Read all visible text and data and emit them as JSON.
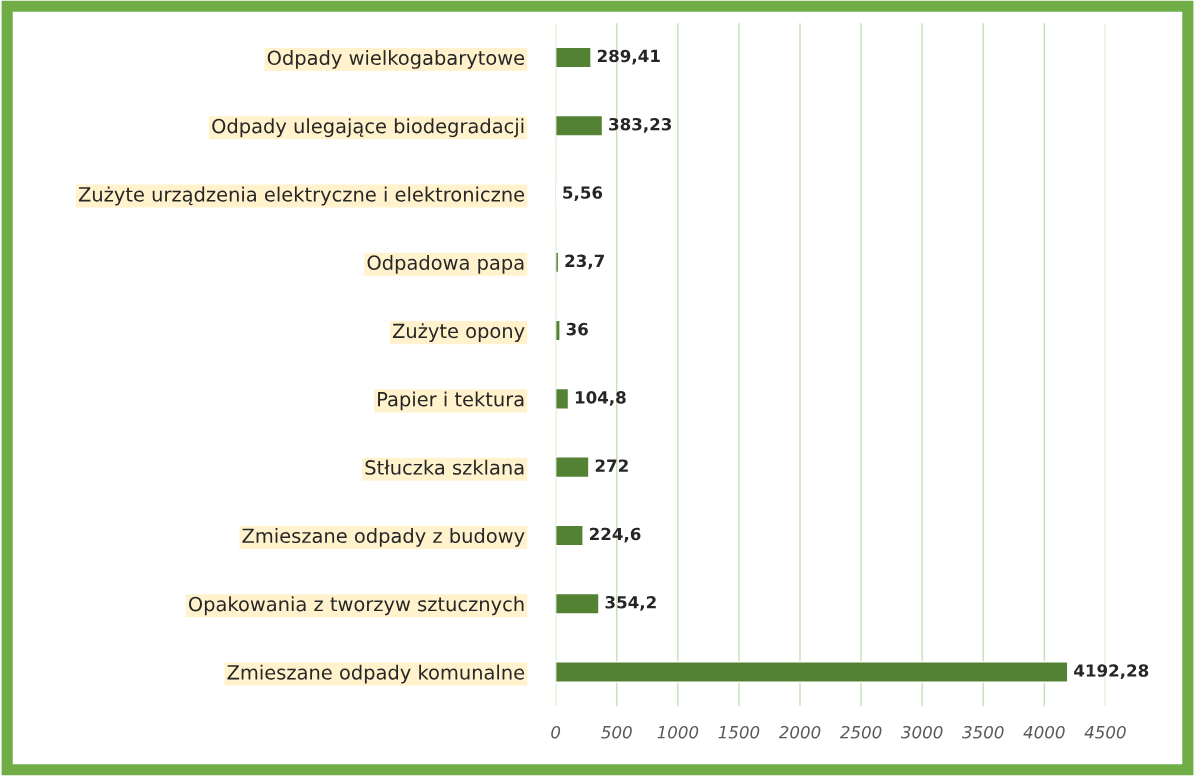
{
  "chart_data": {
    "type": "bar",
    "orientation": "horizontal",
    "categories": [
      "Odpady wielkogabarytowe",
      "Odpady ulegające biodegradacji",
      "Zużyte urządzenia elektryczne i elektroniczne",
      "Odpadowa papa",
      "Zużyte opony",
      "Papier i tektura",
      "Stłuczka szklana",
      "Zmieszane odpady z budowy",
      "Opakowania z tworzyw sztucznych",
      "Zmieszane odpady komunalne"
    ],
    "values": [
      289.41,
      383.23,
      5.56,
      23.7,
      36,
      104.8,
      272,
      224.6,
      354.2,
      4192.28
    ],
    "value_labels": [
      "289,41",
      "383,23",
      "5,56",
      "23,7",
      "36",
      "104,8",
      "272",
      "224,6",
      "354,2",
      "4192,28"
    ],
    "color": "#548235",
    "xlim": [
      0,
      4500
    ],
    "xticks": [
      0,
      500,
      1000,
      1500,
      2000,
      2500,
      3000,
      3500,
      4000,
      4500
    ],
    "grid": "x"
  }
}
